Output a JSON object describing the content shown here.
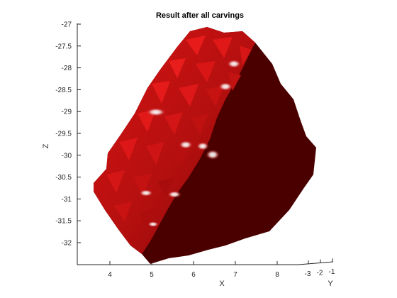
{
  "chart_data": {
    "type": "surface3d",
    "title": "Result after all carvings",
    "xlabel": "X",
    "ylabel": "Y",
    "zlabel": "Z",
    "x_ticks": [
      4,
      5,
      6,
      7,
      8
    ],
    "y_ticks": [
      -3,
      -2,
      -1
    ],
    "z_ticks": [
      -27,
      -27.5,
      -28,
      -28.5,
      -29,
      -29.5,
      -30,
      -30.5,
      -31,
      -31.5,
      -32
    ],
    "zlim": [
      -32.3,
      -26.9
    ],
    "xlim": [
      3.4,
      8.8
    ],
    "colors": {
      "surface_dark": "#4a0000",
      "surface_mid": "#a00d0d",
      "surface_bright": "#e01616",
      "highlight": "#f2f2f2",
      "axis": "#262626"
    }
  }
}
